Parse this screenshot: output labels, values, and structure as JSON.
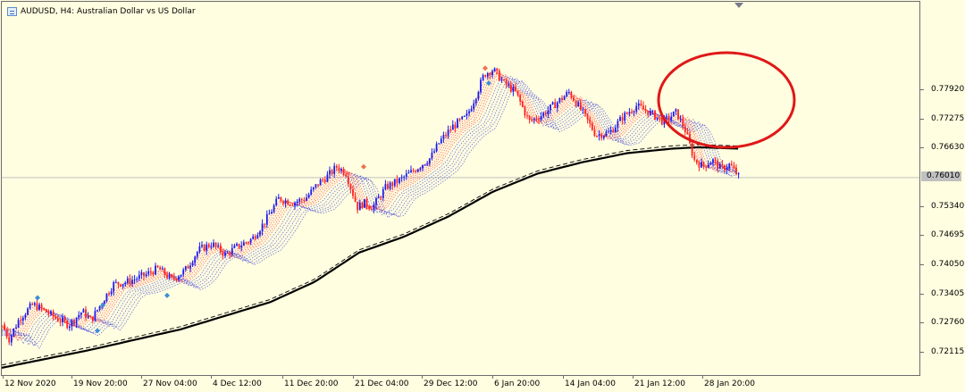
{
  "window": {
    "symbol": "AUDUSD",
    "timeframe": "H4",
    "title": "AUDUSD, H4:  Australian Dollar vs US Dollar"
  },
  "price_axis": {
    "labels": [
      "0.77920",
      "0.77275",
      "0.76630",
      "0.75340",
      "0.74695",
      "0.74050",
      "0.73405",
      "0.72760",
      "0.72115"
    ],
    "current_price": "0.76010"
  },
  "time_axis": {
    "labels": [
      "12 Nov 2020",
      "19 Nov 20:00",
      "27 Nov 04:00",
      "4 Dec 12:00",
      "11 Dec 20:00",
      "21 Dec 04:00",
      "29 Dec 12:00",
      "6 Jan 20:00",
      "14 Jan 04:00",
      "21 Jan 12:00",
      "28 Jan 20:00"
    ]
  },
  "colors": {
    "background": "#fffee0",
    "bull_candle": "#1a1af0",
    "bear_candle": "#ff2020",
    "ma_fast_fan": "#ff4a4a",
    "ma_slow_fan": "#4f4fd8",
    "ma_long": "#000000",
    "highlight_circle": "#e01818",
    "current_price_line": "#c0c0c0"
  },
  "chart_data": {
    "type": "candlestick",
    "ylim": [
      0.716,
      0.799
    ],
    "price_path": [
      [
        0,
        0.7276
      ],
      [
        8,
        0.7243
      ],
      [
        20,
        0.729
      ],
      [
        35,
        0.732
      ],
      [
        45,
        0.731
      ],
      [
        60,
        0.729
      ],
      [
        75,
        0.7275
      ],
      [
        90,
        0.7305
      ],
      [
        100,
        0.7285
      ],
      [
        115,
        0.7335
      ],
      [
        125,
        0.7365
      ],
      [
        140,
        0.737
      ],
      [
        160,
        0.7385
      ],
      [
        175,
        0.74
      ],
      [
        190,
        0.7375
      ],
      [
        205,
        0.7395
      ],
      [
        220,
        0.744
      ],
      [
        235,
        0.7455
      ],
      [
        250,
        0.743
      ],
      [
        265,
        0.745
      ],
      [
        280,
        0.7465
      ],
      [
        295,
        0.7505
      ],
      [
        310,
        0.7555
      ],
      [
        325,
        0.7545
      ],
      [
        340,
        0.7555
      ],
      [
        355,
        0.759
      ],
      [
        365,
        0.7605
      ],
      [
        375,
        0.7625
      ],
      [
        385,
        0.7612
      ],
      [
        398,
        0.7535
      ],
      [
        405,
        0.7545
      ],
      [
        415,
        0.7535
      ],
      [
        430,
        0.758
      ],
      [
        445,
        0.7595
      ],
      [
        460,
        0.7615
      ],
      [
        470,
        0.763
      ],
      [
        480,
        0.7645
      ],
      [
        490,
        0.768
      ],
      [
        505,
        0.7715
      ],
      [
        520,
        0.7735
      ],
      [
        530,
        0.778
      ],
      [
        540,
        0.783
      ],
      [
        550,
        0.784
      ],
      [
        562,
        0.781
      ],
      [
        575,
        0.779
      ],
      [
        590,
        0.7725
      ],
      [
        605,
        0.774
      ],
      [
        620,
        0.7765
      ],
      [
        635,
        0.779
      ],
      [
        650,
        0.7745
      ],
      [
        665,
        0.7695
      ],
      [
        680,
        0.77
      ],
      [
        695,
        0.7735
      ],
      [
        710,
        0.776
      ],
      [
        725,
        0.7745
      ],
      [
        740,
        0.7725
      ],
      [
        755,
        0.7745
      ],
      [
        765,
        0.7705
      ],
      [
        775,
        0.764
      ],
      [
        785,
        0.7625
      ],
      [
        795,
        0.764
      ],
      [
        805,
        0.762
      ],
      [
        815,
        0.763
      ],
      [
        825,
        0.7602
      ]
    ],
    "ma_long_points": [
      [
        0,
        0.718
      ],
      [
        100,
        0.722
      ],
      [
        200,
        0.7265
      ],
      [
        300,
        0.7325
      ],
      [
        350,
        0.737
      ],
      [
        400,
        0.7435
      ],
      [
        450,
        0.747
      ],
      [
        500,
        0.7515
      ],
      [
        550,
        0.757
      ],
      [
        600,
        0.761
      ],
      [
        650,
        0.7635
      ],
      [
        700,
        0.7655
      ],
      [
        750,
        0.7665
      ],
      [
        780,
        0.7668
      ],
      [
        825,
        0.7665
      ]
    ],
    "highlight": {
      "shape": "ellipse",
      "around": "last candles (28 Jan 20:00)"
    }
  }
}
